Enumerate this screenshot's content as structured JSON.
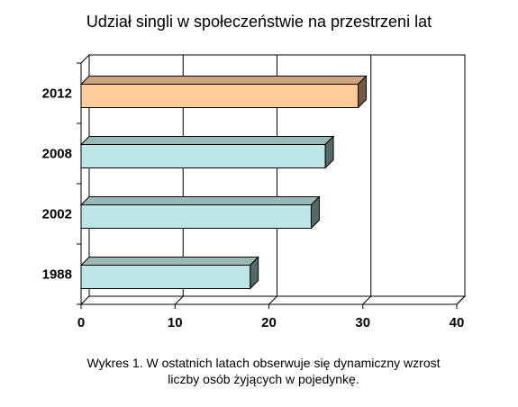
{
  "chart_data": {
    "type": "bar",
    "orientation": "horizontal",
    "title": "Udział singli w społeczeństwie na przestrzeni lat",
    "categories": [
      "2012",
      "2008",
      "2002",
      "1988"
    ],
    "values": [
      29.5,
      26.0,
      24.5,
      18.0
    ],
    "colors": [
      "#FFCC99",
      "#BFE6E6",
      "#BFE6E6",
      "#BFE6E6"
    ],
    "xlim": [
      0,
      40
    ],
    "xticks": [
      0,
      10,
      20,
      30,
      40
    ],
    "xticklabels": [
      "0",
      "10",
      "20",
      "30",
      "40"
    ],
    "xlabel": "",
    "ylabel": "",
    "grid": true,
    "three_d": true
  },
  "caption": {
    "line1": "Wykres 1. W ostatnich latach obserwuje się dynamiczny wzrost",
    "line2": "liczby osób żyjących w pojedynkę."
  }
}
